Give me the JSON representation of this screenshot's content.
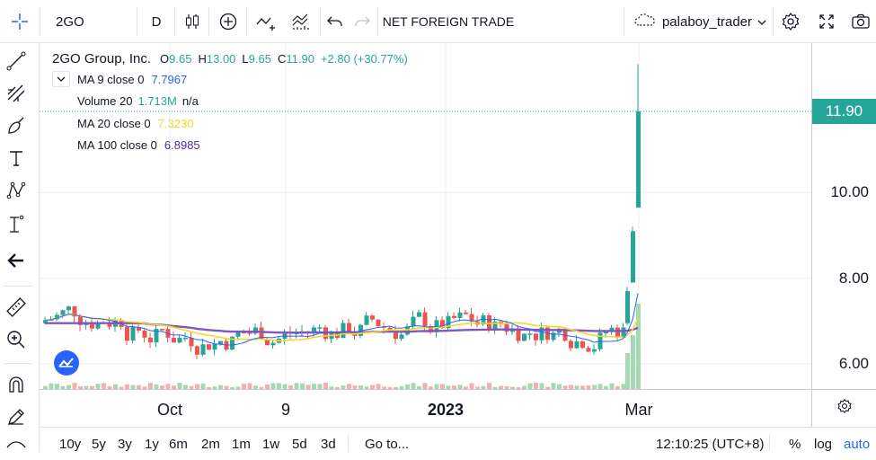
{
  "toolbar": {
    "symbol": "2GO",
    "interval": "D",
    "indicators_label": "NET FOREIGN TRADE",
    "user": "palaboy_trader"
  },
  "legend": {
    "name": "2GO Group, Inc.",
    "o_label": "O",
    "o_val": "9.65",
    "h_label": "H",
    "h_val": "13.00",
    "l_label": "L",
    "l_val": "9.65",
    "c_label": "C",
    "c_val": "11.90",
    "change": "+2.80 (+30.77%)",
    "ma9_label": "MA 9 close 0",
    "ma9_val": "7.7967",
    "vol_label": "Volume 20",
    "vol_val": "1.713M",
    "vol_na": "n/a",
    "ma20_label": "MA 20 close 0",
    "ma20_val": "7.3230",
    "ma100_label": "MA 100 close 0",
    "ma100_val": "6.8985"
  },
  "price_axis": {
    "ticks": [
      "10.00",
      "8.00",
      "6.00"
    ],
    "last_price": "11.90"
  },
  "time_axis": {
    "ticks": [
      "Oct",
      "9",
      "2023",
      "Mar"
    ]
  },
  "bottom": {
    "ranges": [
      "10y",
      "5y",
      "3y",
      "1y",
      "6m",
      "2m",
      "1m",
      "1w",
      "5d",
      "3d"
    ],
    "goto": "Go to...",
    "clock": "12:10:25 (UTC+8)",
    "pct": "%",
    "log": "log",
    "auto": "auto"
  },
  "colors": {
    "up": "#26a69a",
    "down": "#ef5350",
    "ma9": "#2962ff",
    "ma20": "#f7d727",
    "ma100": "#7e57c2",
    "accent": "#2962ff"
  },
  "chart_data": {
    "type": "candlestick",
    "ylim": [
      5.6,
      13.2
    ],
    "ylabel": "",
    "xlabel": "",
    "series_ma9_last": 7.7967,
    "series_ma20_last": 7.323,
    "series_ma100_last": 6.8985,
    "last_candle": {
      "o": 9.65,
      "h": 13.0,
      "l": 9.65,
      "c": 11.9
    }
  }
}
